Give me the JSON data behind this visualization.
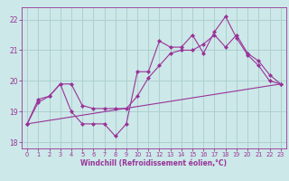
{
  "bg_color": "#cce8e8",
  "grid_color": "#aacccc",
  "line_color": "#993399",
  "marker_color": "#993399",
  "xlabel": "Windchill (Refroidissement éolien,°C)",
  "xlim": [
    -0.5,
    23.5
  ],
  "ylim": [
    17.8,
    22.4
  ],
  "yticks": [
    18,
    19,
    20,
    21,
    22
  ],
  "xticks": [
    0,
    1,
    2,
    3,
    4,
    5,
    6,
    7,
    8,
    9,
    10,
    11,
    12,
    13,
    14,
    15,
    16,
    17,
    18,
    19,
    20,
    21,
    22,
    23
  ],
  "series1_x": [
    0,
    1,
    2,
    3,
    4,
    5,
    6,
    7,
    8,
    9,
    10,
    11,
    12,
    13,
    14,
    15,
    16,
    17,
    18,
    19,
    20,
    21,
    22,
    23
  ],
  "series1_y": [
    18.6,
    19.4,
    19.5,
    19.9,
    19.0,
    18.6,
    18.6,
    18.6,
    18.2,
    18.6,
    20.3,
    20.3,
    21.3,
    21.1,
    21.1,
    21.5,
    20.9,
    21.6,
    22.1,
    21.4,
    20.85,
    20.5,
    20.0,
    19.9
  ],
  "series2_x": [
    0,
    1,
    2,
    3,
    4,
    5,
    6,
    7,
    8,
    9,
    10,
    11,
    12,
    13,
    14,
    15,
    16,
    17,
    18,
    19,
    20,
    21,
    22,
    23
  ],
  "series2_y": [
    18.6,
    19.3,
    19.5,
    19.9,
    19.9,
    19.2,
    19.1,
    19.1,
    19.1,
    19.1,
    19.5,
    20.1,
    20.5,
    20.9,
    21.0,
    21.0,
    21.2,
    21.5,
    21.1,
    21.5,
    20.9,
    20.65,
    20.2,
    19.9
  ],
  "series3_x": [
    0,
    23
  ],
  "series3_y": [
    18.6,
    19.9
  ]
}
